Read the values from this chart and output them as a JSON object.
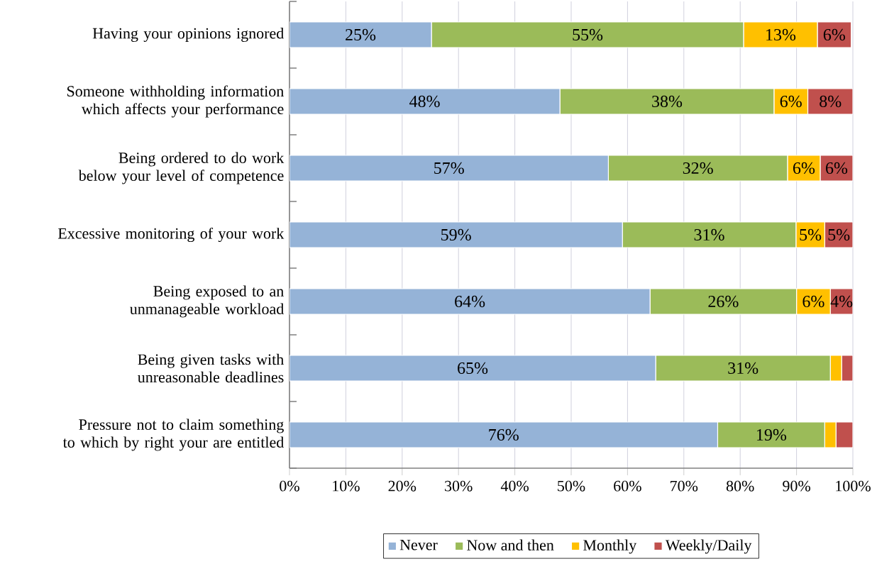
{
  "chart_data": {
    "type": "bar",
    "orientation": "horizontal",
    "stacked": true,
    "categories": [
      "Having your opinions ignored",
      "Someone withholding information which affects your performance",
      "Being ordered to do work below your level of competence",
      "Excessive monitoring of your work",
      "Being exposed to an unmanageable workload",
      "Being given tasks with unreasonable deadlines",
      "Pressure not to claim something to which by right your are entitled"
    ],
    "series": [
      {
        "name": "Never",
        "color": "#95b3d7",
        "values": [
          25.2,
          48,
          56.6,
          59.1,
          64,
          65,
          76
        ],
        "value_labels": [
          "25%",
          "48%",
          "57%",
          "59%",
          "64%",
          "65%",
          "76%"
        ]
      },
      {
        "name": "Now and then",
        "color": "#9bbb59",
        "values": [
          55.4,
          38,
          31.8,
          30.8,
          26,
          31,
          19
        ],
        "value_labels": [
          "55%",
          "38%",
          "32%",
          "31%",
          "26%",
          "31%",
          "19%"
        ]
      },
      {
        "name": "Monthly",
        "color": "#ffc000",
        "values": [
          13.1,
          6,
          5.8,
          5.1,
          6,
          2,
          2
        ],
        "value_labels": [
          "13%",
          "6%",
          "6%",
          "5%",
          "6%",
          null,
          null
        ]
      },
      {
        "name": "Weekly/Daily",
        "color": "#c0504d",
        "values": [
          6,
          8,
          5.8,
          5,
          4,
          2,
          3
        ],
        "value_labels": [
          "6%",
          "8%",
          "6%",
          "5%",
          "4%",
          null,
          null
        ]
      }
    ],
    "xlim": [
      0,
      100
    ],
    "xticks": [
      {
        "value": 0,
        "label": "0%"
      },
      {
        "value": 10,
        "label": "10%"
      },
      {
        "value": 20,
        "label": "20%"
      },
      {
        "value": 30,
        "label": "30%"
      },
      {
        "value": 40,
        "label": "40%"
      },
      {
        "value": 50,
        "label": "50%"
      },
      {
        "value": 60,
        "label": "60%"
      },
      {
        "value": 70,
        "label": "70%"
      },
      {
        "value": 80,
        "label": "80%"
      },
      {
        "value": 90,
        "label": "90%"
      },
      {
        "value": 100,
        "label": "100%"
      }
    ],
    "grid": "x",
    "legend": "bottom"
  }
}
